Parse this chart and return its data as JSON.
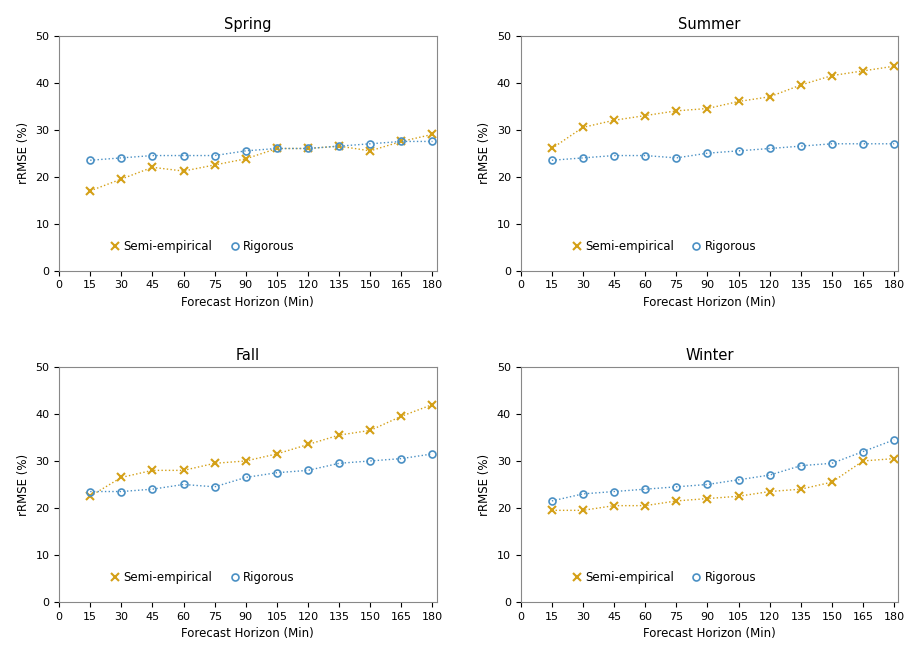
{
  "x": [
    15,
    30,
    45,
    60,
    75,
    90,
    105,
    120,
    135,
    150,
    165,
    180
  ],
  "spring": {
    "semi": [
      17.0,
      19.5,
      22.0,
      21.2,
      22.5,
      23.8,
      26.0,
      26.0,
      26.5,
      25.5,
      27.5,
      29.0
    ],
    "rigorous": [
      23.5,
      24.0,
      24.5,
      24.5,
      24.5,
      25.5,
      26.0,
      26.0,
      26.5,
      27.0,
      27.5,
      27.5
    ]
  },
  "summer": {
    "semi": [
      26.0,
      30.5,
      32.0,
      33.0,
      34.0,
      34.5,
      36.0,
      37.0,
      39.5,
      41.5,
      42.5,
      43.5
    ],
    "rigorous": [
      23.5,
      24.0,
      24.5,
      24.5,
      24.0,
      25.0,
      25.5,
      26.0,
      26.5,
      27.0,
      27.0,
      27.0
    ]
  },
  "fall": {
    "semi": [
      22.5,
      26.5,
      28.0,
      28.0,
      29.5,
      30.0,
      31.5,
      33.5,
      35.5,
      36.5,
      39.5,
      42.0
    ],
    "rigorous": [
      23.5,
      23.5,
      24.0,
      25.0,
      24.5,
      26.5,
      27.5,
      28.0,
      29.5,
      30.0,
      30.5,
      31.5
    ]
  },
  "winter": {
    "semi": [
      19.5,
      19.5,
      20.5,
      20.5,
      21.5,
      22.0,
      22.5,
      23.5,
      24.0,
      25.5,
      30.0,
      30.5
    ],
    "rigorous": [
      21.5,
      23.0,
      23.5,
      24.0,
      24.5,
      25.0,
      26.0,
      27.0,
      29.0,
      29.5,
      32.0,
      34.5
    ]
  },
  "semi_color": "#D4A017",
  "rigorous_color": "#4A90C4",
  "bg_color": "#ffffff",
  "ylim": [
    0,
    50
  ],
  "yticks": [
    0,
    10,
    20,
    30,
    40,
    50
  ],
  "xticks": [
    0,
    15,
    30,
    45,
    60,
    75,
    90,
    105,
    120,
    135,
    150,
    165,
    180
  ],
  "xlabel": "Forecast Horizon (Min)",
  "ylabel": "rRMSE (%)",
  "titles": [
    "Spring",
    "Summer",
    "Fall",
    "Winter"
  ],
  "semi_label": "Semi-empirical",
  "rigorous_label": "Rigorous"
}
